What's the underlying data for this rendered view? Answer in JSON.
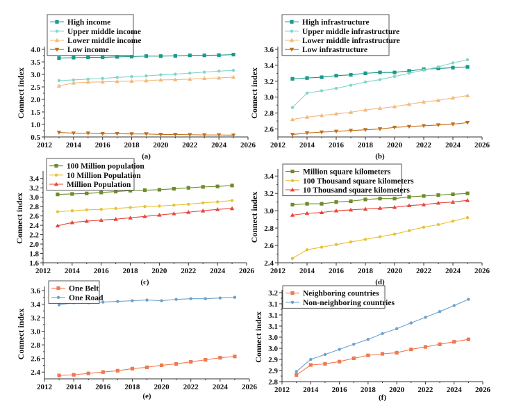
{
  "chart_data": [
    {
      "id": "a",
      "type": "line",
      "caption": "(a)",
      "xlabel": "",
      "ylabel": "Connect index",
      "xlim": [
        2012,
        2026
      ],
      "xticks": [
        2012,
        2014,
        2016,
        2018,
        2020,
        2022,
        2024,
        2026
      ],
      "ylim": [
        0.5,
        4.0
      ],
      "yticks": [
        0.5,
        1.0,
        1.5,
        2.0,
        2.5,
        3.0,
        3.5,
        4.0
      ],
      "ytick_labels": [
        "0.5",
        "1.0",
        "1.5",
        "2.0",
        "2.5",
        "3.0",
        "3.5",
        "4.0"
      ],
      "legend": "top-left",
      "x": [
        2013,
        2014,
        2015,
        2016,
        2017,
        2018,
        2019,
        2020,
        2021,
        2022,
        2023,
        2024,
        2025
      ],
      "series": [
        {
          "name": "High income",
          "color": "#1a9a8a",
          "marker": "square",
          "values": [
            3.65,
            3.67,
            3.68,
            3.68,
            3.7,
            3.71,
            3.73,
            3.73,
            3.74,
            3.76,
            3.76,
            3.77,
            3.79
          ]
        },
        {
          "name": "Upper middle income",
          "color": "#7fd6c8",
          "marker": "diamond",
          "values": [
            2.75,
            2.78,
            2.81,
            2.84,
            2.88,
            2.91,
            2.94,
            2.98,
            3.01,
            3.05,
            3.09,
            3.13,
            3.16
          ]
        },
        {
          "name": "Lower middle income",
          "color": "#f4b87a",
          "marker": "triangle-up",
          "values": [
            2.54,
            2.66,
            2.69,
            2.7,
            2.72,
            2.73,
            2.75,
            2.78,
            2.79,
            2.81,
            2.84,
            2.86,
            2.89
          ]
        },
        {
          "name": "Low income",
          "color": "#c0701a",
          "marker": "triangle-down",
          "values": [
            0.68,
            0.65,
            0.65,
            0.63,
            0.63,
            0.62,
            0.62,
            0.6,
            0.6,
            0.59,
            0.58,
            0.58,
            0.57
          ]
        }
      ]
    },
    {
      "id": "b",
      "type": "line",
      "caption": "(b)",
      "xlabel": "",
      "ylabel": "Connect index",
      "xlim": [
        2012,
        2026
      ],
      "xticks": [
        2012,
        2014,
        2016,
        2018,
        2020,
        2022,
        2024,
        2026
      ],
      "ylim": [
        2.5,
        3.6
      ],
      "yticks": [
        2.6,
        2.8,
        3.0,
        3.2,
        3.4,
        3.6
      ],
      "ytick_labels": [
        "2.6",
        "2.8",
        "3.0",
        "3.2",
        "3.4",
        "3.6"
      ],
      "legend": "top-left",
      "x": [
        2013,
        2014,
        2015,
        2016,
        2017,
        2018,
        2019,
        2020,
        2021,
        2022,
        2023,
        2024,
        2025
      ],
      "series": [
        {
          "name": "High infrastructure",
          "color": "#1a9a8a",
          "marker": "square",
          "values": [
            3.23,
            3.24,
            3.25,
            3.27,
            3.28,
            3.3,
            3.31,
            3.31,
            3.33,
            3.35,
            3.36,
            3.37,
            3.38
          ]
        },
        {
          "name": "Upper middle infrastructure",
          "color": "#7fd6c8",
          "marker": "diamond",
          "values": [
            2.87,
            3.05,
            3.08,
            3.11,
            3.15,
            3.19,
            3.22,
            3.26,
            3.3,
            3.34,
            3.38,
            3.43,
            3.47
          ]
        },
        {
          "name": "Lower middle infrastructure",
          "color": "#f4b87a",
          "marker": "triangle-up",
          "values": [
            2.72,
            2.75,
            2.77,
            2.79,
            2.81,
            2.84,
            2.86,
            2.88,
            2.91,
            2.94,
            2.96,
            2.99,
            3.02
          ]
        },
        {
          "name": "Low infrastructure",
          "color": "#c0701a",
          "marker": "triangle-down",
          "values": [
            2.53,
            2.55,
            2.56,
            2.57,
            2.58,
            2.59,
            2.6,
            2.62,
            2.63,
            2.64,
            2.65,
            2.66,
            2.68
          ]
        }
      ]
    },
    {
      "id": "c",
      "type": "line",
      "caption": "(c)",
      "xlabel": "",
      "ylabel": "Connect index",
      "xlim": [
        2012,
        2026
      ],
      "xticks": [
        2012,
        2014,
        2016,
        2018,
        2020,
        2022,
        2024,
        2026
      ],
      "ylim": [
        1.6,
        3.5
      ],
      "yticks": [
        1.6,
        1.8,
        2.0,
        2.2,
        2.4,
        2.6,
        2.8,
        3.0,
        3.2,
        3.4
      ],
      "ytick_labels": [
        "1.6",
        "1.8",
        "2.0",
        "2.2",
        "2.4",
        "2.6",
        "2.8",
        "3.0",
        "3.2",
        "3.4"
      ],
      "legend": "top-left",
      "x": [
        2013,
        2014,
        2015,
        2016,
        2017,
        2018,
        2019,
        2020,
        2021,
        2022,
        2023,
        2024,
        2025
      ],
      "series": [
        {
          "name": "100 Million population",
          "color": "#6e8b2a",
          "marker": "square",
          "values": [
            3.06,
            3.07,
            3.08,
            3.1,
            3.12,
            3.14,
            3.15,
            3.16,
            3.18,
            3.2,
            3.22,
            3.23,
            3.25
          ]
        },
        {
          "name": "10 Million Population",
          "color": "#e8c230",
          "marker": "diamond",
          "values": [
            2.69,
            2.71,
            2.73,
            2.74,
            2.76,
            2.78,
            2.8,
            2.81,
            2.83,
            2.85,
            2.88,
            2.9,
            2.93
          ]
        },
        {
          "name": "Million Population",
          "color": "#e8453a",
          "marker": "triangle-up",
          "values": [
            2.39,
            2.46,
            2.49,
            2.51,
            2.53,
            2.56,
            2.59,
            2.62,
            2.65,
            2.68,
            2.71,
            2.74,
            2.76
          ]
        }
      ]
    },
    {
      "id": "d",
      "type": "line",
      "caption": "(d)",
      "xlabel": "",
      "ylabel": "Connect index",
      "xlim": [
        2012,
        2026
      ],
      "xticks": [
        2012,
        2014,
        2016,
        2018,
        2020,
        2022,
        2024,
        2026
      ],
      "ylim": [
        2.4,
        3.45
      ],
      "yticks": [
        2.4,
        2.6,
        2.8,
        3.0,
        3.2,
        3.4
      ],
      "ytick_labels": [
        "2.4",
        "2.6",
        "2.8",
        "3.0",
        "3.2",
        "3.4"
      ],
      "legend": "top-left",
      "x": [
        2013,
        2014,
        2015,
        2016,
        2017,
        2018,
        2019,
        2020,
        2021,
        2022,
        2023,
        2024,
        2025
      ],
      "series": [
        {
          "name": "Million square kilometers",
          "color": "#6e8b2a",
          "marker": "square",
          "values": [
            3.07,
            3.08,
            3.08,
            3.1,
            3.11,
            3.13,
            3.14,
            3.14,
            3.16,
            3.17,
            3.18,
            3.19,
            3.2
          ]
        },
        {
          "name": "100 Thousand square kilometers",
          "color": "#e8c230",
          "marker": "diamond",
          "values": [
            2.45,
            2.55,
            2.58,
            2.61,
            2.64,
            2.67,
            2.7,
            2.73,
            2.77,
            2.81,
            2.84,
            2.88,
            2.92
          ]
        },
        {
          "name": "10 Thousand square kilometers",
          "color": "#e8453a",
          "marker": "triangle-up",
          "values": [
            2.95,
            2.97,
            2.98,
            3.0,
            3.01,
            3.02,
            3.03,
            3.04,
            3.06,
            3.07,
            3.09,
            3.1,
            3.12
          ]
        }
      ]
    },
    {
      "id": "e",
      "type": "line",
      "caption": "(e)",
      "xlabel": "",
      "ylabel": "Connect index",
      "xlim": [
        2012,
        2026
      ],
      "xticks": [
        2012,
        2014,
        2016,
        2018,
        2020,
        2022,
        2024,
        2026
      ],
      "ylim": [
        2.3,
        3.62
      ],
      "yticks": [
        2.4,
        2.6,
        2.8,
        3.0,
        3.2,
        3.4,
        3.6
      ],
      "ytick_labels": [
        "2.4",
        "2.6",
        "2.8",
        "3.0",
        "3.2",
        "3.4",
        "3.6"
      ],
      "legend": "top-left",
      "x": [
        2013,
        2014,
        2015,
        2016,
        2017,
        2018,
        2019,
        2020,
        2021,
        2022,
        2023,
        2024,
        2025
      ],
      "series": [
        {
          "name": "One Belt",
          "color": "#f07850",
          "marker": "square",
          "values": [
            2.35,
            2.36,
            2.38,
            2.4,
            2.42,
            2.45,
            2.47,
            2.5,
            2.52,
            2.55,
            2.58,
            2.61,
            2.63
          ]
        },
        {
          "name": "One Road",
          "color": "#6fa0cc",
          "marker": "diamond",
          "values": [
            3.39,
            3.42,
            3.42,
            3.43,
            3.44,
            3.45,
            3.46,
            3.45,
            3.47,
            3.48,
            3.48,
            3.49,
            3.5
          ]
        }
      ]
    },
    {
      "id": "f",
      "type": "line",
      "caption": "(f)",
      "xlabel": "",
      "ylabel": "Connect index",
      "xlim": [
        2012,
        2026
      ],
      "xticks": [
        2012,
        2014,
        2016,
        2018,
        2020,
        2022,
        2024,
        2026
      ],
      "ylim": [
        2.8,
        3.2
      ],
      "yticks": [
        2.8,
        2.85,
        2.9,
        2.95,
        3.0,
        3.05,
        3.1,
        3.15,
        3.2
      ],
      "ytick_labels": [
        "2.8",
        "2.9",
        "2.9",
        "3.0",
        "3.0",
        "3.1",
        "3.1",
        "3.1",
        "3.2"
      ],
      "legend": "top-left",
      "x": [
        2013,
        2014,
        2015,
        2016,
        2017,
        2018,
        2019,
        2020,
        2021,
        2022,
        2023,
        2024,
        2025
      ],
      "series": [
        {
          "name": "Neighboring countries",
          "color": "#f07850",
          "marker": "square",
          "values": [
            2.83,
            2.875,
            2.88,
            2.89,
            2.905,
            2.918,
            2.925,
            2.93,
            2.945,
            2.956,
            2.968,
            2.979,
            2.99
          ]
        },
        {
          "name": "Non-neighboring countries",
          "color": "#6fa0cc",
          "marker": "diamond",
          "values": [
            2.845,
            2.9,
            2.922,
            2.945,
            2.968,
            2.99,
            3.016,
            3.038,
            3.064,
            3.089,
            3.115,
            3.142,
            3.17
          ]
        }
      ]
    }
  ]
}
